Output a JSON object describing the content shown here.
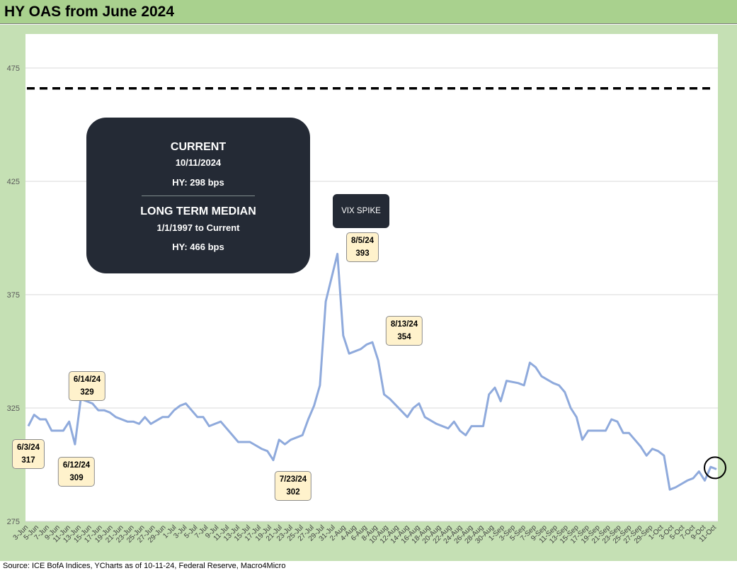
{
  "header": {
    "title": "HY OAS from June 2024"
  },
  "footer": {
    "source": "Source: ICE BofA Indices, YCharts as of 10-11-24, Federal Reserve, Macro4Micro"
  },
  "info_box": {
    "current_title": "CURRENT",
    "current_date": "10/11/2024",
    "current_value": "HY: 298 bps",
    "median_title": "LONG TERM MEDIAN",
    "median_period": "1/1/1997 to Current",
    "median_value": "HY: 466 bps"
  },
  "vix_label": "VIX SPIKE",
  "colors": {
    "line": "#8faadc",
    "median_line": "#000000",
    "frame": "#c5e0b4",
    "title_bar": "#a9d18e",
    "callout_fill": "#fff2cc",
    "dark_box": "#242a35"
  },
  "chart_data": {
    "type": "line",
    "title": "HY OAS from June 2024",
    "ylim": [
      275,
      490
    ],
    "yticks": [
      275,
      325,
      375,
      425,
      475
    ],
    "median_reference": 466,
    "categories": [
      "3-Jun",
      "5-Jun",
      "7-Jun",
      "9-Jun",
      "11-Jun",
      "13-Jun",
      "15-Jun",
      "17-Jun",
      "19-Jun",
      "21-Jun",
      "23-Jun",
      "25-Jun",
      "27-Jun",
      "29-Jun",
      "1-Jul",
      "3-Jul",
      "5-Jul",
      "7-Jul",
      "9-Jul",
      "11-Jul",
      "13-Jul",
      "15-Jul",
      "17-Jul",
      "19-Jul",
      "21-Jul",
      "23-Jul",
      "25-Jul",
      "27-Jul",
      "29-Jul",
      "31-Jul",
      "2-Aug",
      "4-Aug",
      "6-Aug",
      "8-Aug",
      "10-Aug",
      "12-Aug",
      "14-Aug",
      "16-Aug",
      "18-Aug",
      "20-Aug",
      "22-Aug",
      "24-Aug",
      "26-Aug",
      "28-Aug",
      "30-Aug",
      "1-Sep",
      "3-Sep",
      "5-Sep",
      "7-Sep",
      "9-Sep",
      "11-Sep",
      "13-Sep",
      "15-Sep",
      "17-Sep",
      "19-Sep",
      "21-Sep",
      "23-Sep",
      "25-Sep",
      "27-Sep",
      "29-Sep",
      "1-Oct",
      "3-Oct",
      "5-Oct",
      "7-Oct",
      "9-Oct",
      "11-Oct"
    ],
    "series": [
      {
        "values": [
          [
            0,
            317
          ],
          [
            1,
            322
          ],
          [
            2,
            320
          ],
          [
            3,
            320
          ],
          [
            4,
            315
          ],
          [
            5,
            315
          ],
          [
            6,
            315
          ],
          [
            7,
            319
          ],
          [
            8,
            309
          ],
          [
            9,
            329
          ],
          [
            11,
            327
          ],
          [
            12,
            324
          ],
          [
            13,
            324
          ],
          [
            14,
            323
          ],
          [
            15,
            321
          ],
          [
            16,
            320
          ],
          [
            17,
            319
          ],
          [
            18,
            319
          ],
          [
            19,
            318
          ],
          [
            20,
            321
          ],
          [
            21,
            318
          ],
          [
            23,
            321
          ],
          [
            24,
            321
          ],
          [
            25,
            324
          ],
          [
            26,
            326
          ],
          [
            27,
            327
          ],
          [
            29,
            321
          ],
          [
            30,
            321
          ],
          [
            31,
            317
          ],
          [
            32,
            318
          ],
          [
            33,
            319
          ],
          [
            35,
            313
          ],
          [
            36,
            310
          ],
          [
            37,
            310
          ],
          [
            38,
            310
          ],
          [
            40,
            307
          ],
          [
            41,
            306
          ],
          [
            42,
            302
          ],
          [
            43,
            311
          ],
          [
            44,
            309
          ],
          [
            45,
            311
          ],
          [
            47,
            313
          ],
          [
            48,
            320
          ],
          [
            49,
            326
          ],
          [
            50,
            335
          ],
          [
            51,
            372
          ],
          [
            53,
            393
          ],
          [
            54,
            357
          ],
          [
            55,
            349
          ],
          [
            57,
            351
          ],
          [
            58,
            353
          ],
          [
            59,
            354
          ],
          [
            60,
            346
          ],
          [
            61,
            331
          ],
          [
            62,
            329
          ],
          [
            65,
            321
          ],
          [
            66,
            325
          ],
          [
            67,
            327
          ],
          [
            68,
            321
          ],
          [
            70,
            318
          ],
          [
            72,
            316
          ],
          [
            73,
            319
          ],
          [
            74,
            315
          ],
          [
            75,
            313
          ],
          [
            76,
            317
          ],
          [
            77,
            317
          ],
          [
            78,
            317
          ],
          [
            79,
            331
          ],
          [
            80,
            334
          ],
          [
            81,
            328
          ],
          [
            82,
            337
          ],
          [
            84,
            336
          ],
          [
            85,
            335
          ],
          [
            86,
            345
          ],
          [
            87,
            343
          ],
          [
            88,
            339
          ],
          [
            90,
            336
          ],
          [
            91,
            335
          ],
          [
            92,
            332
          ],
          [
            93,
            325
          ],
          [
            94,
            321
          ],
          [
            95,
            311
          ],
          [
            96,
            315
          ],
          [
            97,
            315
          ],
          [
            98,
            315
          ],
          [
            99,
            315
          ],
          [
            100,
            320
          ],
          [
            101,
            319
          ],
          [
            102,
            314
          ],
          [
            103,
            314
          ],
          [
            104,
            311
          ],
          [
            105,
            308
          ],
          [
            106,
            304
          ],
          [
            107,
            307
          ],
          [
            108,
            306
          ],
          [
            109,
            304
          ],
          [
            110,
            289
          ],
          [
            111,
            290
          ],
          [
            113,
            293
          ],
          [
            114,
            294
          ],
          [
            115,
            297
          ],
          [
            116,
            293
          ],
          [
            117,
            299
          ],
          [
            118,
            298
          ]
        ]
      }
    ],
    "x_max_index": 118,
    "annotations": [
      {
        "label_date": "6/3/24",
        "label_value": "317",
        "index": 0
      },
      {
        "label_date": "6/12/24",
        "label_value": "309",
        "index": 8
      },
      {
        "label_date": "6/14/24",
        "label_value": "329",
        "index": 9
      },
      {
        "label_date": "7/23/24",
        "label_value": "302",
        "index": 42
      },
      {
        "label_date": "8/5/24",
        "label_value": "393",
        "index": 53
      },
      {
        "label_date": "8/13/24",
        "label_value": "354",
        "index": 59
      }
    ]
  }
}
